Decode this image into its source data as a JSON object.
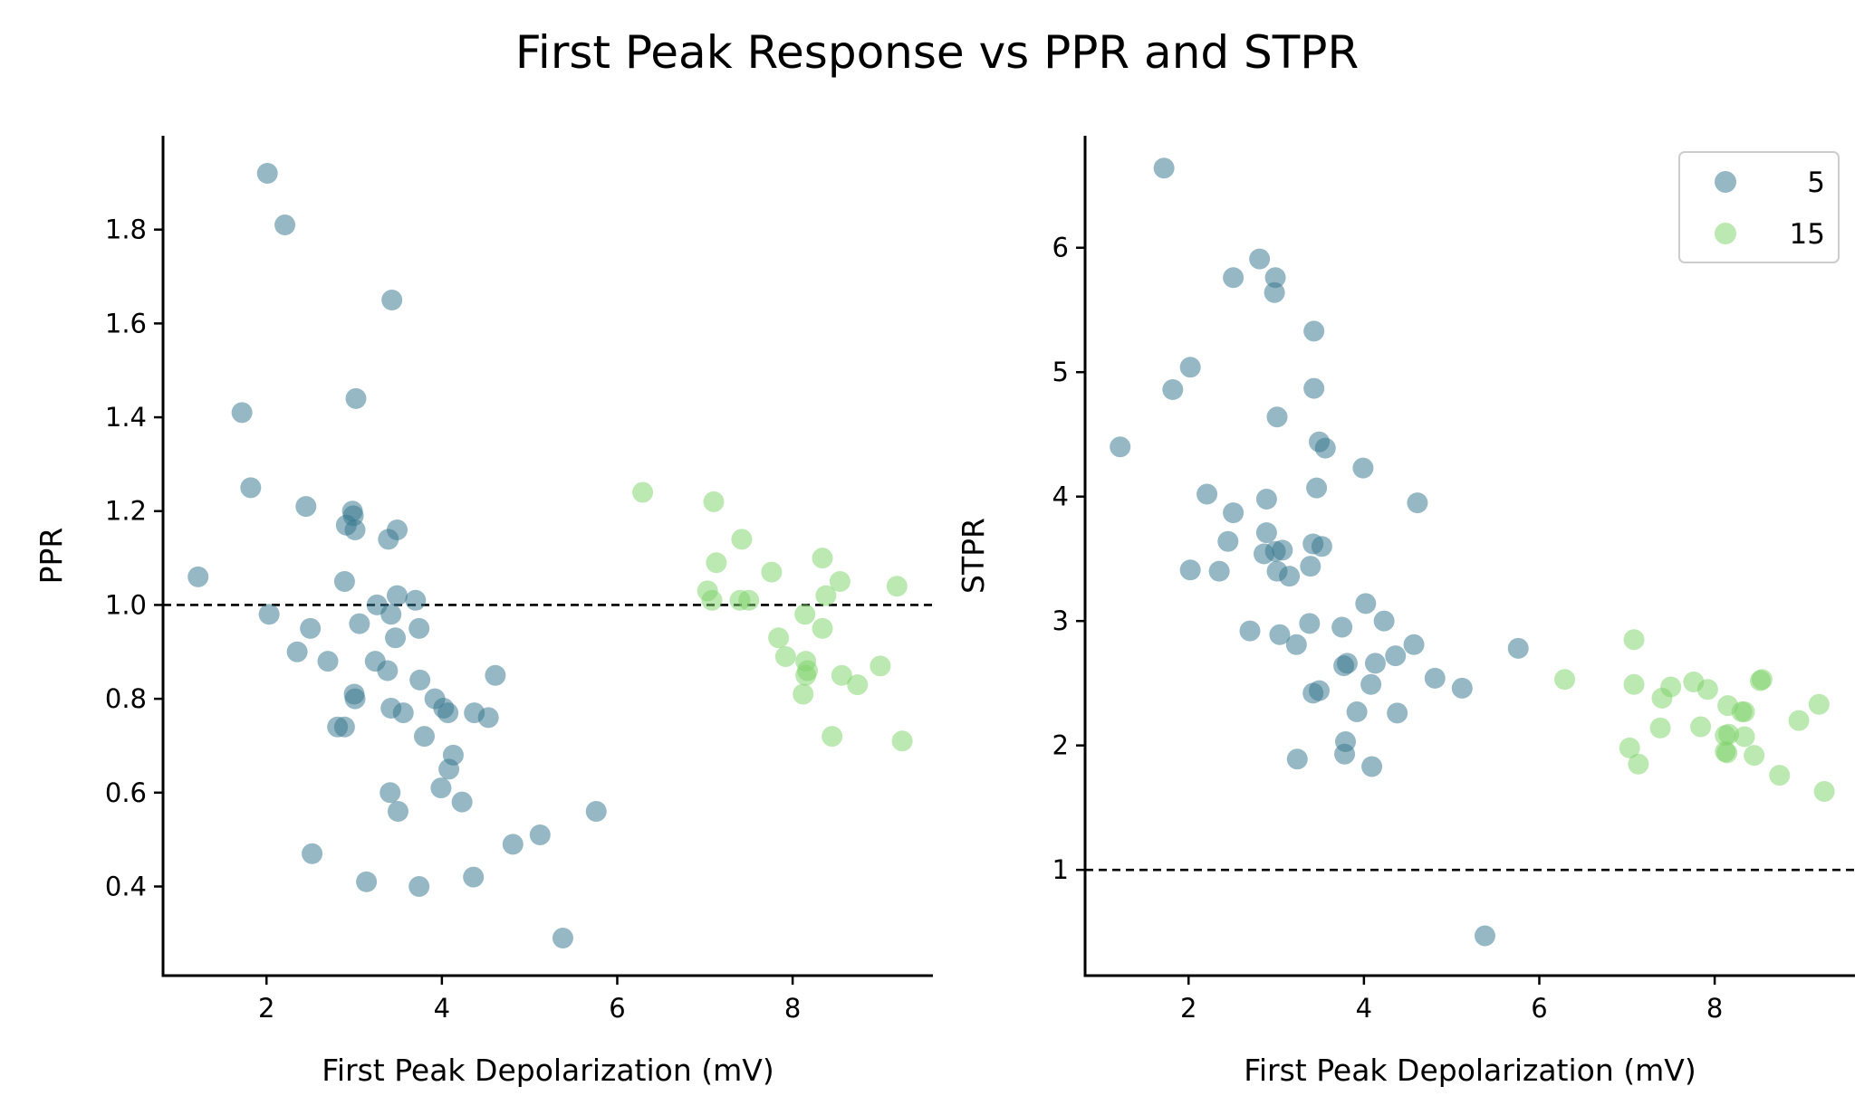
{
  "title": "First Peak Response vs PPR and STPR",
  "colors": {
    "series_5": "#35778e",
    "series_15": "#7fd36b",
    "axis": "#000000",
    "reference_line": "#000000",
    "legend_border": "#cccccc"
  },
  "legend": {
    "placement": "top-right of right panel",
    "entries": [
      "5",
      "15"
    ]
  },
  "chart_data": [
    {
      "type": "scatter",
      "title": "",
      "xlabel": "First Peak Depolarization (mV)",
      "ylabel": "PPR",
      "xlim": [
        0.82,
        9.6
      ],
      "ylim": [
        0.21,
        2.0
      ],
      "xticks": [
        2,
        4,
        6,
        8
      ],
      "yticks": [
        0.4,
        0.6,
        0.8,
        1.0,
        1.2,
        1.4,
        1.6,
        1.8
      ],
      "ytick_labels": [
        "0.4",
        "0.6",
        "0.8",
        "1.0",
        "1.2",
        "1.4",
        "1.6",
        "1.8"
      ],
      "reference_line": {
        "y": 1.0,
        "style": "dashed"
      },
      "grid": false,
      "series": [
        {
          "name": "5",
          "points": [
            [
              2.01,
              1.92
            ],
            [
              2.21,
              1.81
            ],
            [
              3.43,
              1.65
            ],
            [
              1.72,
              1.41
            ],
            [
              3.02,
              1.44
            ],
            [
              1.82,
              1.25
            ],
            [
              2.45,
              1.21
            ],
            [
              2.98,
              1.2
            ],
            [
              2.99,
              1.19
            ],
            [
              2.91,
              1.17
            ],
            [
              3.01,
              1.16
            ],
            [
              3.39,
              1.14
            ],
            [
              3.49,
              1.16
            ],
            [
              1.22,
              1.06
            ],
            [
              2.89,
              1.05
            ],
            [
              3.49,
              1.02
            ],
            [
              3.26,
              1.0
            ],
            [
              3.7,
              1.01
            ],
            [
              2.03,
              0.98
            ],
            [
              3.42,
              0.98
            ],
            [
              2.5,
              0.95
            ],
            [
              3.06,
              0.96
            ],
            [
              3.74,
              0.95
            ],
            [
              3.47,
              0.93
            ],
            [
              2.35,
              0.9
            ],
            [
              2.7,
              0.88
            ],
            [
              3.24,
              0.88
            ],
            [
              3.38,
              0.86
            ],
            [
              4.61,
              0.85
            ],
            [
              3.75,
              0.84
            ],
            [
              3.0,
              0.81
            ],
            [
              3.01,
              0.8
            ],
            [
              3.92,
              0.8
            ],
            [
              4.02,
              0.78
            ],
            [
              3.42,
              0.78
            ],
            [
              3.56,
              0.77
            ],
            [
              4.07,
              0.77
            ],
            [
              4.37,
              0.77
            ],
            [
              4.53,
              0.76
            ],
            [
              2.89,
              0.74
            ],
            [
              2.81,
              0.74
            ],
            [
              3.8,
              0.72
            ],
            [
              4.13,
              0.68
            ],
            [
              4.08,
              0.65
            ],
            [
              3.99,
              0.61
            ],
            [
              3.41,
              0.6
            ],
            [
              4.23,
              0.58
            ],
            [
              3.5,
              0.56
            ],
            [
              5.76,
              0.56
            ],
            [
              5.12,
              0.51
            ],
            [
              4.81,
              0.49
            ],
            [
              2.52,
              0.47
            ],
            [
              3.14,
              0.41
            ],
            [
              4.36,
              0.42
            ],
            [
              3.74,
              0.4
            ],
            [
              5.38,
              0.29
            ]
          ]
        },
        {
          "name": "15",
          "points": [
            [
              6.29,
              1.24
            ],
            [
              7.1,
              1.22
            ],
            [
              7.42,
              1.14
            ],
            [
              8.34,
              1.1
            ],
            [
              7.13,
              1.09
            ],
            [
              7.76,
              1.07
            ],
            [
              8.54,
              1.05
            ],
            [
              9.19,
              1.04
            ],
            [
              7.03,
              1.03
            ],
            [
              8.38,
              1.02
            ],
            [
              7.4,
              1.01
            ],
            [
              7.5,
              1.01
            ],
            [
              7.08,
              1.01
            ],
            [
              8.14,
              0.98
            ],
            [
              8.34,
              0.95
            ],
            [
              7.84,
              0.93
            ],
            [
              7.92,
              0.89
            ],
            [
              8.15,
              0.88
            ],
            [
              8.17,
              0.86
            ],
            [
              8.15,
              0.85
            ],
            [
              8.56,
              0.85
            ],
            [
              9.0,
              0.87
            ],
            [
              8.74,
              0.83
            ],
            [
              8.12,
              0.81
            ],
            [
              8.45,
              0.72
            ],
            [
              9.25,
              0.71
            ]
          ]
        }
      ]
    },
    {
      "type": "scatter",
      "title": "",
      "xlabel": "First Peak Depolarization (mV)",
      "ylabel": "STPR",
      "xlim": [
        0.82,
        9.6
      ],
      "ylim": [
        0.15,
        6.9
      ],
      "xticks": [
        2,
        4,
        6,
        8
      ],
      "yticks": [
        1,
        2,
        3,
        4,
        5,
        6
      ],
      "ytick_labels": [
        "1",
        "2",
        "3",
        "4",
        "5",
        "6"
      ],
      "reference_line": {
        "y": 1.0,
        "style": "dashed"
      },
      "grid": false,
      "series": [
        {
          "name": "5",
          "points": [
            [
              1.72,
              6.64
            ],
            [
              2.81,
              5.91
            ],
            [
              2.51,
              5.76
            ],
            [
              2.99,
              5.76
            ],
            [
              2.98,
              5.64
            ],
            [
              3.43,
              5.33
            ],
            [
              2.02,
              5.04
            ],
            [
              1.82,
              4.86
            ],
            [
              3.43,
              4.87
            ],
            [
              3.01,
              4.64
            ],
            [
              3.49,
              4.44
            ],
            [
              3.56,
              4.39
            ],
            [
              1.22,
              4.4
            ],
            [
              3.99,
              4.23
            ],
            [
              3.46,
              4.07
            ],
            [
              2.21,
              4.02
            ],
            [
              2.89,
              3.98
            ],
            [
              4.61,
              3.95
            ],
            [
              2.51,
              3.87
            ],
            [
              2.89,
              3.71
            ],
            [
              2.45,
              3.64
            ],
            [
              3.42,
              3.62
            ],
            [
              3.52,
              3.6
            ],
            [
              3.07,
              3.57
            ],
            [
              2.99,
              3.56
            ],
            [
              2.86,
              3.54
            ],
            [
              3.39,
              3.44
            ],
            [
              2.02,
              3.41
            ],
            [
              2.35,
              3.4
            ],
            [
              3.01,
              3.4
            ],
            [
              3.15,
              3.36
            ],
            [
              4.02,
              3.14
            ],
            [
              4.23,
              3.0
            ],
            [
              3.38,
              2.98
            ],
            [
              2.7,
              2.92
            ],
            [
              3.04,
              2.89
            ],
            [
              3.75,
              2.95
            ],
            [
              3.23,
              2.81
            ],
            [
              4.57,
              2.81
            ],
            [
              5.76,
              2.78
            ],
            [
              4.36,
              2.72
            ],
            [
              4.13,
              2.66
            ],
            [
              3.81,
              2.66
            ],
            [
              3.77,
              2.64
            ],
            [
              4.81,
              2.54
            ],
            [
              4.08,
              2.49
            ],
            [
              5.12,
              2.46
            ],
            [
              3.49,
              2.44
            ],
            [
              3.42,
              2.42
            ],
            [
              3.92,
              2.27
            ],
            [
              4.38,
              2.26
            ],
            [
              3.79,
              2.03
            ],
            [
              3.78,
              1.93
            ],
            [
              3.24,
              1.89
            ],
            [
              4.09,
              1.83
            ],
            [
              5.38,
              0.47
            ]
          ]
        },
        {
          "name": "15",
          "points": [
            [
              7.08,
              2.85
            ],
            [
              6.29,
              2.53
            ],
            [
              7.08,
              2.49
            ],
            [
              7.5,
              2.47
            ],
            [
              7.76,
              2.51
            ],
            [
              8.54,
              2.53
            ],
            [
              8.52,
              2.52
            ],
            [
              7.92,
              2.45
            ],
            [
              7.4,
              2.38
            ],
            [
              8.15,
              2.32
            ],
            [
              9.19,
              2.33
            ],
            [
              8.31,
              2.27
            ],
            [
              8.34,
              2.27
            ],
            [
              8.96,
              2.2
            ],
            [
              7.84,
              2.15
            ],
            [
              7.38,
              2.14
            ],
            [
              8.16,
              2.09
            ],
            [
              8.12,
              2.08
            ],
            [
              8.34,
              2.07
            ],
            [
              7.03,
              1.98
            ],
            [
              8.12,
              1.95
            ],
            [
              8.14,
              1.94
            ],
            [
              8.45,
              1.92
            ],
            [
              7.13,
              1.85
            ],
            [
              8.74,
              1.76
            ],
            [
              9.25,
              1.63
            ]
          ]
        }
      ]
    }
  ]
}
